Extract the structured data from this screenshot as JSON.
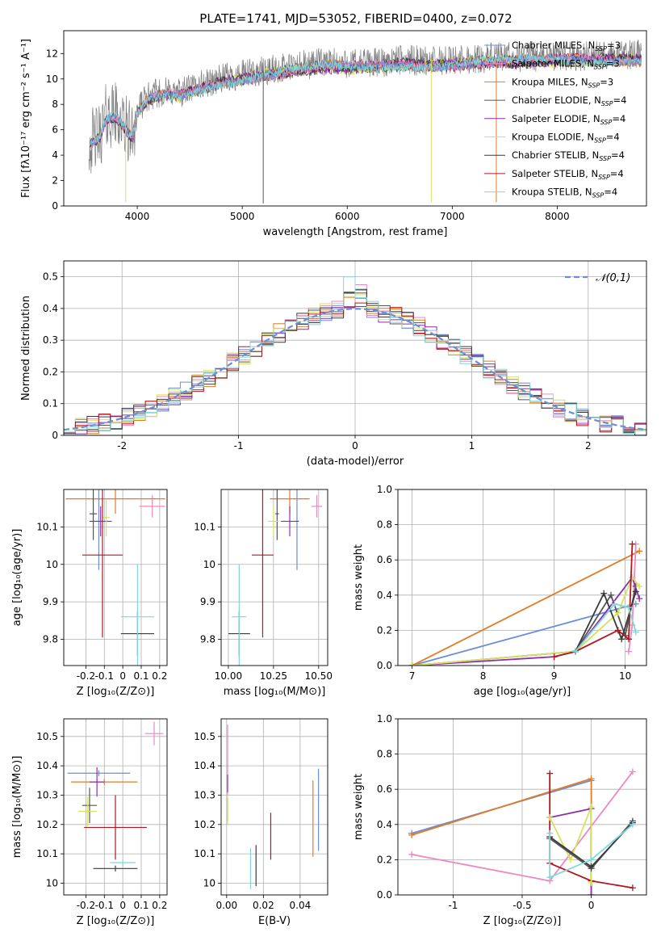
{
  "figure_title": "PLATE=1741, MJD=53052, FIBERID=0400, z=0.072",
  "colors": {
    "chab_miles": "#6a8fd8",
    "salp_miles": "#e98ac0",
    "krou_miles": "#e07b25",
    "chab_elodie": "#555555",
    "salp_elodie": "#8b2fb0",
    "krou_elodie": "#d8e060",
    "chab_stelib": "#3a3a3a",
    "salp_stelib": "#b01820",
    "krou_stelib": "#80d8d8"
  },
  "chart_data": [
    {
      "id": "spectrum",
      "type": "line",
      "title": "PLATE=1741, MJD=53052, FIBERID=0400, z=0.072",
      "xlabel": "wavelength [Angstrom, rest frame]",
      "ylabel": "Flux [fλ10⁻¹⁷ erg cm⁻² s⁻¹ A⁻¹]",
      "xlim": [
        3300,
        8850
      ],
      "ylim": [
        0,
        13.8
      ],
      "xticks": [
        4000,
        5000,
        6000,
        7000,
        8000
      ],
      "yticks": [
        0,
        2,
        4,
        6,
        8,
        10,
        12
      ],
      "legend_position": "right",
      "legend": [
        {
          "label": "Chabrier MILES, N",
          "sub": "SSP",
          "suffix": "=3",
          "color_key": "chab_miles"
        },
        {
          "label": "Salpeter MILES, N",
          "sub": "SSP",
          "suffix": "=3",
          "color_key": "salp_miles"
        },
        {
          "label": "Kroupa MILES, N",
          "sub": "SSP",
          "suffix": "=3",
          "color_key": "krou_miles"
        },
        {
          "label": "Chabrier ELODIE, N",
          "sub": "SSP",
          "suffix": "=4",
          "color_key": "chab_elodie"
        },
        {
          "label": "Salpeter ELODIE, N",
          "sub": "SSP",
          "suffix": "=4",
          "color_key": "salp_elodie"
        },
        {
          "label": "Kroupa ELODIE, N",
          "sub": "SSP",
          "suffix": "=4",
          "color_key": "krou_elodie"
        },
        {
          "label": "Chabrier STELIB, N",
          "sub": "SSP",
          "suffix": "=4",
          "color_key": "chab_stelib"
        },
        {
          "label": "Salpeter STELIB, N",
          "sub": "SSP",
          "suffix": "=4",
          "color_key": "salp_stelib"
        },
        {
          "label": "Kroupa STELIB, N",
          "sub": "SSP",
          "suffix": "=4",
          "color_key": "krou_stelib"
        }
      ],
      "continuum_knots": [
        [
          3550,
          5.0
        ],
        [
          3650,
          5.6
        ],
        [
          3700,
          7.0
        ],
        [
          3800,
          7.2
        ],
        [
          3950,
          5.5
        ],
        [
          4000,
          7.5
        ],
        [
          4100,
          8.6
        ],
        [
          4250,
          9.0
        ],
        [
          4400,
          8.9
        ],
        [
          4600,
          9.5
        ],
        [
          4800,
          10.0
        ],
        [
          5000,
          10.3
        ],
        [
          5200,
          10.6
        ],
        [
          5500,
          11.0
        ],
        [
          5800,
          11.3
        ],
        [
          6000,
          11.2
        ],
        [
          6300,
          11.3
        ],
        [
          6563,
          11.5
        ],
        [
          6800,
          11.4
        ],
        [
          7000,
          11.5
        ],
        [
          7200,
          11.6
        ],
        [
          7500,
          11.7
        ],
        [
          8000,
          11.8
        ],
        [
          8800,
          11.9
        ]
      ],
      "observed_noise_amplitude": 1.2,
      "model_noise_amplitude": 0.35,
      "model_spikes": [
        {
          "x": 3890,
          "y": 0.3,
          "color_key": "krou_elodie"
        },
        {
          "x": 6800,
          "y": 0.3,
          "color_key": "krou_elodie"
        },
        {
          "x": 7420,
          "y": 0.3,
          "color_key": "krou_miles"
        },
        {
          "x": 5200,
          "y": 0.2,
          "color_key": "chab_elodie"
        }
      ]
    },
    {
      "id": "residual-histogram",
      "type": "histogram",
      "xlabel": "(data-model)/error",
      "ylabel": "Normed distribution",
      "xlim": [
        -2.5,
        2.5
      ],
      "ylim": [
        0,
        0.55
      ],
      "xticks": [
        -2,
        -1,
        0,
        1,
        2
      ],
      "yticks": [
        0,
        0.1,
        0.2,
        0.3,
        0.4,
        0.5
      ],
      "bin_width": 0.1,
      "reference": {
        "label": "𝒩(0,1)",
        "mean": 0,
        "sigma": 1,
        "color": "#6a8fd8",
        "style": "dashed"
      },
      "legend_position": "top-right"
    },
    {
      "id": "age-vs-metallicity",
      "type": "scatter",
      "xlabel": "Z [log₁₀(Z/Z⊙)]",
      "ylabel": "age  [log₁₀(age/yr)]",
      "xlim": [
        -0.32,
        0.24
      ],
      "ylim": [
        9.73,
        10.2
      ],
      "xticks": [
        -0.2,
        -0.1,
        0.0,
        0.1,
        0.2
      ],
      "yticks": [
        9.8,
        9.9,
        10.0,
        10.1
      ],
      "points": [
        {
          "color_key": "chab_miles",
          "x": -0.13,
          "y": 10.115,
          "xerr": 0.05,
          "yerr": 0.13
        },
        {
          "color_key": "salp_miles",
          "x": 0.16,
          "y": 10.155,
          "xerr": 0.07,
          "yerr": 0.03
        },
        {
          "color_key": "krou_miles",
          "x": -0.04,
          "y": 10.175,
          "xerr": 0.27,
          "yerr": 0.04
        },
        {
          "color_key": "chab_elodie",
          "x": -0.16,
          "y": 10.135,
          "xerr": 0.02,
          "yerr": 0.07
        },
        {
          "color_key": "salp_elodie",
          "x": -0.12,
          "y": 10.115,
          "xerr": 0.06,
          "yerr": 0.04
        },
        {
          "color_key": "krou_elodie",
          "x": -0.09,
          "y": 10.125,
          "xerr": 0.02,
          "yerr": 0.05
        },
        {
          "color_key": "chab_stelib",
          "x": 0.08,
          "y": 9.815,
          "xerr": 0.09,
          "yerr": 0.06
        },
        {
          "color_key": "salp_stelib",
          "x": -0.11,
          "y": 10.025,
          "xerr": 0.11,
          "yerr": 0.22
        },
        {
          "color_key": "krou_stelib",
          "x": 0.08,
          "y": 9.86,
          "xerr": 0.09,
          "yerr": 0.14
        }
      ]
    },
    {
      "id": "age-vs-mass",
      "type": "scatter",
      "xlabel": "mass [log₁₀(M/M⊙)]",
      "ylabel": "",
      "xlim": [
        9.96,
        10.55
      ],
      "ylim": [
        9.73,
        10.2
      ],
      "xticks": [
        10.0,
        10.25,
        10.5
      ],
      "xtick_labels": [
        "10.00",
        "10.25",
        "10.50"
      ],
      "yticks": [
        9.8,
        9.9,
        10.0,
        10.1
      ],
      "points": [
        {
          "color_key": "chab_miles",
          "x": 10.38,
          "y": 10.115,
          "xerr": 0.01,
          "yerr": 0.13
        },
        {
          "color_key": "salp_miles",
          "x": 10.49,
          "y": 10.155,
          "xerr": 0.03,
          "yerr": 0.03
        },
        {
          "color_key": "krou_miles",
          "x": 10.34,
          "y": 10.175,
          "xerr": 0.11,
          "yerr": 0.04
        },
        {
          "color_key": "chab_elodie",
          "x": 10.27,
          "y": 10.135,
          "xerr": 0.01,
          "yerr": 0.07
        },
        {
          "color_key": "salp_elodie",
          "x": 10.34,
          "y": 10.115,
          "xerr": 0.05,
          "yerr": 0.04
        },
        {
          "color_key": "krou_elodie",
          "x": 10.25,
          "y": 10.115,
          "xerr": 0.03,
          "yerr": 0.04
        },
        {
          "color_key": "chab_stelib",
          "x": 10.06,
          "y": 9.815,
          "xerr": 0.06,
          "yerr": 0.06
        },
        {
          "color_key": "salp_stelib",
          "x": 10.19,
          "y": 10.025,
          "xerr": 0.06,
          "yerr": 0.22
        },
        {
          "color_key": "krou_stelib",
          "x": 10.06,
          "y": 9.86,
          "xerr": 0.04,
          "yerr": 0.14
        }
      ]
    },
    {
      "id": "mass-weight-vs-age",
      "type": "line",
      "xlabel": "age  [log₁₀(age/yr)]",
      "ylabel": "mass weight",
      "xlim": [
        6.8,
        10.3
      ],
      "ylim": [
        0,
        1.0
      ],
      "xticks": [
        7,
        8,
        9,
        10
      ],
      "yticks": [
        0,
        0.2,
        0.4,
        0.6,
        0.8,
        1.0
      ],
      "yformat": "1dp",
      "series": [
        {
          "color_key": "chab_miles",
          "x": [
            7.0,
            10.15
          ],
          "y": [
            0.0,
            0.35
          ]
        },
        {
          "color_key": "krou_miles",
          "x": [
            7.0,
            10.2
          ],
          "y": [
            0.0,
            0.65
          ]
        },
        {
          "color_key": "salp_miles",
          "x": [
            10.05,
            10.1,
            10.15
          ],
          "y": [
            0.08,
            0.23,
            0.69
          ]
        },
        {
          "color_key": "chab_elodie",
          "x": [
            7.0,
            9.3,
            9.8,
            10.0,
            10.15
          ],
          "y": [
            0.0,
            0.08,
            0.4,
            0.17,
            0.45
          ]
        },
        {
          "color_key": "salp_elodie",
          "x": [
            7.0,
            9.0,
            9.3,
            10.1,
            10.2
          ],
          "y": [
            0.0,
            0.05,
            0.08,
            0.5,
            0.38
          ]
        },
        {
          "color_key": "krou_elodie",
          "x": [
            7.0,
            9.3,
            9.9,
            10.1,
            10.2
          ],
          "y": [
            0.0,
            0.08,
            0.3,
            0.5,
            0.45
          ]
        },
        {
          "color_key": "chab_stelib",
          "x": [
            9.3,
            9.7,
            9.95,
            10.15
          ],
          "y": [
            0.08,
            0.41,
            0.15,
            0.42
          ]
        },
        {
          "color_key": "salp_stelib",
          "x": [
            9.0,
            9.3,
            9.9,
            10.05,
            10.1
          ],
          "y": [
            0.05,
            0.08,
            0.2,
            0.15,
            0.69
          ]
        },
        {
          "color_key": "krou_stelib",
          "x": [
            9.3,
            9.85,
            10.05,
            10.15
          ],
          "y": [
            0.08,
            0.35,
            0.33,
            0.19
          ]
        }
      ]
    },
    {
      "id": "mass-vs-metallicity",
      "type": "scatter",
      "xlabel": "Z [log₁₀(Z/Z⊙)]",
      "ylabel": "mass [log₁₀(M/M⊙)]",
      "xlim": [
        -0.32,
        0.24
      ],
      "ylim": [
        9.96,
        10.56
      ],
      "xticks": [
        -0.2,
        -0.1,
        0.0,
        0.1,
        0.2
      ],
      "yticks": [
        10.0,
        10.1,
        10.2,
        10.3,
        10.4,
        10.5
      ],
      "points": [
        {
          "color_key": "chab_miles",
          "x": -0.13,
          "y": 10.375,
          "xerr": 0.17,
          "yerr": 0.01
        },
        {
          "color_key": "salp_miles",
          "x": 0.17,
          "y": 10.51,
          "xerr": 0.05,
          "yerr": 0.04
        },
        {
          "color_key": "krou_miles",
          "x": -0.1,
          "y": 10.345,
          "xerr": 0.18,
          "yerr": 0.01
        },
        {
          "color_key": "chab_elodie",
          "x": -0.18,
          "y": 10.265,
          "xerr": 0.04,
          "yerr": 0.06
        },
        {
          "color_key": "salp_elodie",
          "x": -0.14,
          "y": 10.345,
          "xerr": 0.04,
          "yerr": 0.05
        },
        {
          "color_key": "krou_elodie",
          "x": -0.19,
          "y": 10.245,
          "xerr": 0.05,
          "yerr": 0.05
        },
        {
          "color_key": "chab_stelib",
          "x": -0.04,
          "y": 10.05,
          "xerr": 0.12,
          "yerr": 0.01
        },
        {
          "color_key": "salp_stelib",
          "x": -0.04,
          "y": 10.19,
          "xerr": 0.17,
          "yerr": 0.11
        },
        {
          "color_key": "krou_stelib",
          "x": 0.0,
          "y": 10.07,
          "xerr": 0.07,
          "yerr": 0.01
        }
      ]
    },
    {
      "id": "mass-vs-reddening",
      "type": "scatter",
      "xlabel": "E(B-V)",
      "ylabel": "",
      "xlim": [
        -0.003,
        0.055
      ],
      "ylim": [
        9.96,
        10.56
      ],
      "xticks": [
        0.0,
        0.02,
        0.04
      ],
      "xtick_labels": [
        "0.00",
        "0.02",
        "0.04"
      ],
      "yticks": [
        10.0,
        10.1,
        10.2,
        10.3,
        10.4,
        10.5
      ],
      "points": [
        {
          "color_key": "chab_miles",
          "x": 0.05,
          "y": 10.25,
          "xerr": 0.0001,
          "yerr": 0.14
        },
        {
          "color_key": "salp_miles",
          "x": 0.0005,
          "y": 10.42,
          "xerr": 0.0001,
          "yerr": 0.12
        },
        {
          "color_key": "krou_miles",
          "x": 0.047,
          "y": 10.22,
          "xerr": 0.0001,
          "yerr": 0.13
        },
        {
          "color_key": "chab_elodie",
          "x": 0.0005,
          "y": 10.25,
          "xerr": 0.0001,
          "yerr": 0.04
        },
        {
          "color_key": "salp_elodie",
          "x": 0.0005,
          "y": 10.34,
          "xerr": 0.0001,
          "yerr": 0.03
        },
        {
          "color_key": "krou_elodie",
          "x": 0.0005,
          "y": 10.25,
          "xerr": 0.0001,
          "yerr": 0.05
        },
        {
          "color_key": "chab_stelib",
          "x": 0.016,
          "y": 10.06,
          "xerr": 0.0001,
          "yerr": 0.07
        },
        {
          "color_key": "salp_stelib",
          "x": 0.024,
          "y": 10.16,
          "xerr": 0.0001,
          "yerr": 0.08
        },
        {
          "color_key": "krou_stelib",
          "x": 0.013,
          "y": 10.05,
          "xerr": 0.0001,
          "yerr": 0.07
        }
      ]
    },
    {
      "id": "mass-weight-vs-metallicity",
      "type": "line",
      "xlabel": "Z [log₁₀(Z/Z⊙)]",
      "ylabel": "mass weight",
      "xlim": [
        -1.4,
        0.4
      ],
      "ylim": [
        0,
        1.0
      ],
      "xticks": [
        -1.0,
        -0.5,
        0.0
      ],
      "yticks": [
        0,
        0.2,
        0.4,
        0.6,
        0.8,
        1.0
      ],
      "yformat": "1dp",
      "series": [
        {
          "color_key": "chab_miles",
          "x": [
            -1.3,
            0.0
          ],
          "y": [
            0.35,
            0.65
          ]
        },
        {
          "color_key": "krou_miles",
          "x": [
            -1.3,
            0.0,
            0.0
          ],
          "y": [
            0.34,
            0.66,
            0.0
          ]
        },
        {
          "color_key": "salp_miles",
          "x": [
            -1.3,
            -0.3,
            0.3
          ],
          "y": [
            0.23,
            0.08,
            0.7
          ]
        },
        {
          "color_key": "salp_stelib",
          "x": [
            -0.3,
            -0.3,
            0.0,
            0.3
          ],
          "y": [
            0.69,
            0.18,
            0.08,
            0.04
          ]
        },
        {
          "color_key": "salp_elodie",
          "x": [
            -0.3,
            0.0,
            0.0
          ],
          "y": [
            0.44,
            0.49,
            0.0
          ]
        },
        {
          "color_key": "krou_elodie",
          "x": [
            -0.3,
            -0.15,
            0.0,
            0.0
          ],
          "y": [
            0.44,
            0.2,
            0.5,
            0.07
          ]
        },
        {
          "color_key": "chab_elodie",
          "x": [
            -0.3,
            0.0,
            0.3
          ],
          "y": [
            0.32,
            0.15,
            0.42
          ]
        },
        {
          "color_key": "chab_stelib",
          "x": [
            -0.3,
            0.0,
            0.3
          ],
          "y": [
            0.33,
            0.16,
            0.41
          ]
        },
        {
          "color_key": "krou_stelib",
          "x": [
            -0.3,
            -0.3,
            0.0,
            0.3
          ],
          "y": [
            0.35,
            0.1,
            0.2,
            0.4
          ]
        }
      ]
    }
  ]
}
